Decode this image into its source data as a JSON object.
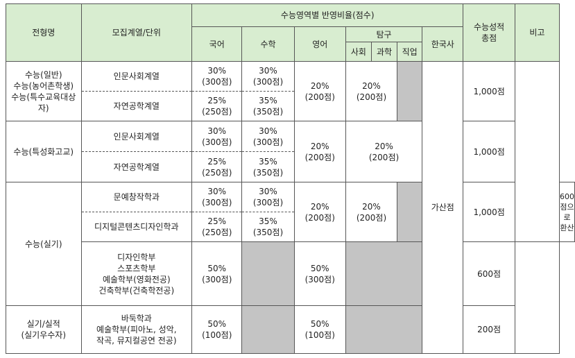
{
  "headers": {
    "type_name": "전형명",
    "unit": "모집계열/단위",
    "ratio_group": "수능영역별  반영비율(점수)",
    "korean": "국어",
    "math": "수학",
    "english": "영어",
    "inquiry": "탐구",
    "social": "사회",
    "science": "과학",
    "vocational": "직업",
    "history": "한국사",
    "total": [
      "수능성적",
      "총점"
    ],
    "note": "비고"
  },
  "cells": {
    "type_general": [
      "수능(일반)",
      "수능(농어촌학생)",
      "수능(특수교육대상자)"
    ],
    "type_specialized": "수능(특성화고교)",
    "type_practical": "수능(실기)",
    "type_talent": [
      "실기/실적",
      "(실기우수자)"
    ],
    "unit_humanities": "인문사회계열",
    "unit_engineering": "자연공학계열",
    "unit_creative_writing": "문예창작학과",
    "unit_digital_design": "디지털콘텐츠디자인학과",
    "unit_arts_group": [
      "디자인학부",
      "스포츠학부",
      "예술학부(영화전공)",
      "건축학부(건축학전공)"
    ],
    "unit_talent_group": [
      "바둑학과",
      "예술학부(피아노, 성악,",
      "작곡, 뮤지컬공연 전공)"
    ],
    "ratio_30_300": [
      "30%",
      "(300점)"
    ],
    "ratio_25_250": [
      "25%",
      "(250점)"
    ],
    "ratio_35_350": [
      "35%",
      "(350점)"
    ],
    "ratio_20_200": [
      "20%",
      "(200점)"
    ],
    "ratio_50_300": [
      "50%",
      "(300점)"
    ],
    "ratio_50_100": [
      "50%",
      "(100점)"
    ],
    "history_bonus": "가산점",
    "total_1000": "1,000점",
    "total_600": "600점",
    "total_200": "200점",
    "note_convert": [
      "600점으로",
      "환산"
    ]
  }
}
